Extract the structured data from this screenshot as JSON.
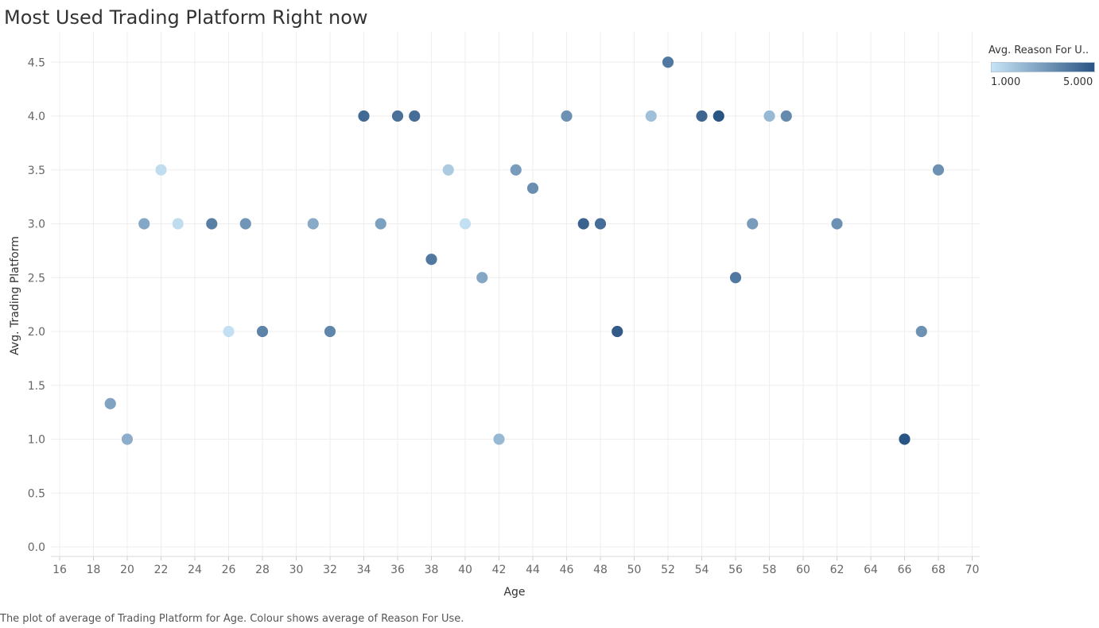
{
  "title": "Most Used Trading Platform Right now",
  "caption": "The plot of average of Trading Platform for Age. Colour shows average of Reason For Use.",
  "legend": {
    "title": "Avg. Reason For U..",
    "min_label": "1.000",
    "max_label": "5.000",
    "color_low": "#c7e4f5",
    "color_high": "#2a5483"
  },
  "chart_data": {
    "type": "scatter",
    "title": "Most Used Trading Platform Right now",
    "xlabel": "Age",
    "ylabel": "Avg. Trading Platform",
    "xlim": [
      16,
      70
    ],
    "ylim": [
      0,
      4.5
    ],
    "xticks": [
      16,
      18,
      20,
      22,
      24,
      26,
      28,
      30,
      32,
      34,
      36,
      38,
      40,
      42,
      44,
      46,
      48,
      50,
      52,
      54,
      56,
      58,
      60,
      62,
      64,
      66,
      68,
      70
    ],
    "yticks": [
      0.0,
      0.5,
      1.0,
      1.5,
      2.0,
      2.5,
      3.0,
      3.5,
      4.0,
      4.5
    ],
    "grid": true,
    "legend_placement": "top-right",
    "color_range": [
      1,
      5
    ],
    "points": [
      {
        "x": 19,
        "y": 1.33,
        "c": 2.8
      },
      {
        "x": 20,
        "y": 1.0,
        "c": 2.5
      },
      {
        "x": 21,
        "y": 3.0,
        "c": 2.7
      },
      {
        "x": 22,
        "y": 3.5,
        "c": 1.2
      },
      {
        "x": 23,
        "y": 3.0,
        "c": 1.2
      },
      {
        "x": 25,
        "y": 3.0,
        "c": 3.8
      },
      {
        "x": 26,
        "y": 2.0,
        "c": 1.1
      },
      {
        "x": 27,
        "y": 3.0,
        "c": 3.2
      },
      {
        "x": 28,
        "y": 2.0,
        "c": 3.7
      },
      {
        "x": 31,
        "y": 3.0,
        "c": 2.6
      },
      {
        "x": 32,
        "y": 2.0,
        "c": 3.6
      },
      {
        "x": 34,
        "y": 4.0,
        "c": 4.4
      },
      {
        "x": 35,
        "y": 3.0,
        "c": 2.9
      },
      {
        "x": 36,
        "y": 4.0,
        "c": 4.2
      },
      {
        "x": 37,
        "y": 4.0,
        "c": 4.3
      },
      {
        "x": 38,
        "y": 2.67,
        "c": 4.0
      },
      {
        "x": 39,
        "y": 3.5,
        "c": 1.7
      },
      {
        "x": 40,
        "y": 3.0,
        "c": 1.1
      },
      {
        "x": 41,
        "y": 2.5,
        "c": 2.7
      },
      {
        "x": 42,
        "y": 1.0,
        "c": 2.2
      },
      {
        "x": 43,
        "y": 3.5,
        "c": 3.0
      },
      {
        "x": 44,
        "y": 3.33,
        "c": 3.4
      },
      {
        "x": 46,
        "y": 4.0,
        "c": 3.3
      },
      {
        "x": 47,
        "y": 3.0,
        "c": 4.6
      },
      {
        "x": 48,
        "y": 3.0,
        "c": 4.3
      },
      {
        "x": 49,
        "y": 2.0,
        "c": 4.8
      },
      {
        "x": 51,
        "y": 4.0,
        "c": 2.0
      },
      {
        "x": 52,
        "y": 4.5,
        "c": 4.0
      },
      {
        "x": 54,
        "y": 4.0,
        "c": 4.5
      },
      {
        "x": 55,
        "y": 4.0,
        "c": 5.0
      },
      {
        "x": 56,
        "y": 2.5,
        "c": 4.0
      },
      {
        "x": 57,
        "y": 3.0,
        "c": 3.0
      },
      {
        "x": 58,
        "y": 4.0,
        "c": 2.2
      },
      {
        "x": 59,
        "y": 4.0,
        "c": 3.5
      },
      {
        "x": 62,
        "y": 3.0,
        "c": 3.3
      },
      {
        "x": 66,
        "y": 1.0,
        "c": 5.0
      },
      {
        "x": 67,
        "y": 2.0,
        "c": 3.3
      },
      {
        "x": 68,
        "y": 3.5,
        "c": 3.3
      }
    ]
  }
}
